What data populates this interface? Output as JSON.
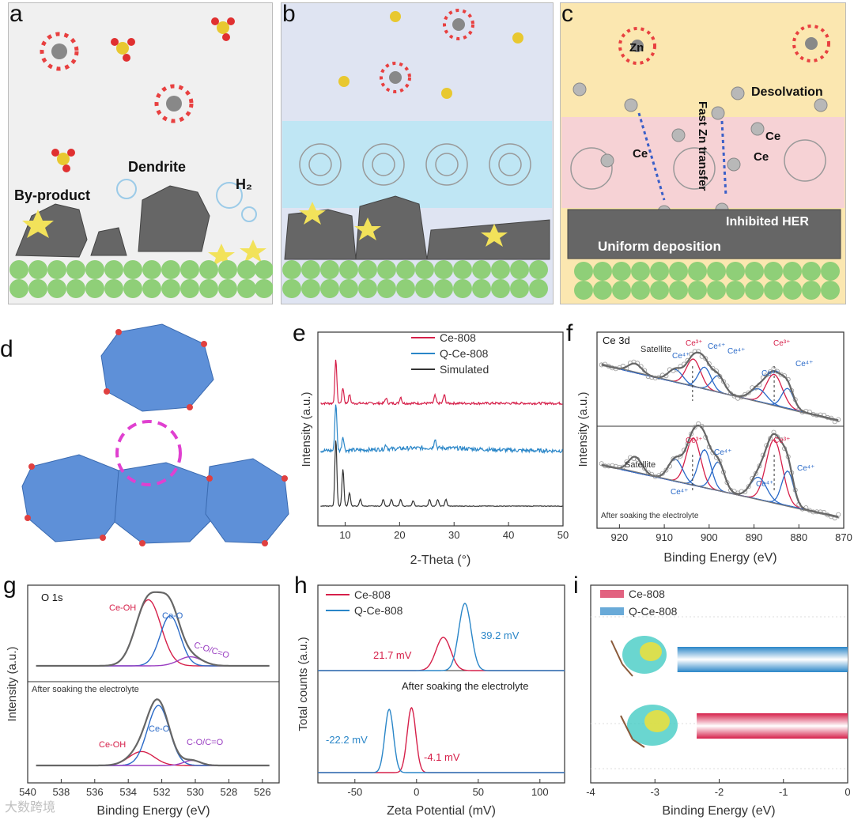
{
  "panels": {
    "a": {
      "label": "a",
      "texts": {
        "byproduct": "By-product",
        "dendrite": "Dendrite",
        "h2": "H₂"
      }
    },
    "b": {
      "label": "b"
    },
    "c": {
      "label": "c",
      "texts": {
        "zn": "Zn",
        "desolvation": "Desolvation",
        "fast": "Fast Zn transfer",
        "ce1": "Ce",
        "ce2": "Ce",
        "ce3": "Ce",
        "inhibited": "Inhibited HER",
        "uniform": "Uniform deposition"
      }
    },
    "d": {
      "label": "d"
    },
    "e": {
      "label": "e"
    },
    "f": {
      "label": "f",
      "texts": {
        "title": "Ce 3d",
        "satellite1": "Satellite",
        "satellite2": "Satellite",
        "after": "After soaking the electrolyte",
        "ce3": "Ce³⁺",
        "ce4": "Ce⁴⁺"
      }
    },
    "g": {
      "label": "g",
      "texts": {
        "title": "O 1s",
        "ceoh": "Ce-OH",
        "ceo": "Ce-O",
        "coc": "C-O/C=O",
        "after": "After soaking the electrolyte"
      }
    },
    "h": {
      "label": "h",
      "texts": {
        "after": "After soaking the electrolyte",
        "v1": "21.7 mV",
        "v2": "39.2 mV",
        "v3": "-22.2 mV",
        "v4": "-4.1 mV"
      }
    },
    "i": {
      "label": "i"
    }
  },
  "colors": {
    "red": "#d6204a",
    "blue": "#2a86c8",
    "black": "#333333",
    "gray": "#7a7a7a",
    "purple": "#9a3fc2"
  },
  "chart_data": [
    {
      "id": "e",
      "type": "line",
      "xlabel": "2-Theta (°)",
      "ylabel": "Intensity (a.u.)",
      "xlim": [
        5,
        50
      ],
      "xticks": [
        "10",
        "20",
        "30",
        "40",
        "50"
      ],
      "series": [
        {
          "name": "Ce-808",
          "peaks": [
            [
              8.3,
              1.0
            ],
            [
              9.6,
              0.35
            ],
            [
              10.8,
              0.2
            ],
            [
              17.5,
              0.12
            ],
            [
              20.2,
              0.15
            ],
            [
              26.5,
              0.18
            ],
            [
              28.2,
              0.2
            ]
          ]
        },
        {
          "name": "Q-Ce-808",
          "peaks": [
            [
              8.3,
              1.0
            ],
            [
              9.6,
              0.3
            ],
            [
              17.5,
              0.1
            ],
            [
              26.5,
              0.2
            ]
          ]
        },
        {
          "name": "Simulated",
          "peaks": [
            [
              8.3,
              1.0
            ],
            [
              9.6,
              0.55
            ],
            [
              10.8,
              0.2
            ],
            [
              12.8,
              0.1
            ],
            [
              17.0,
              0.1
            ],
            [
              18.5,
              0.1
            ],
            [
              20.2,
              0.1
            ],
            [
              22.5,
              0.08
            ],
            [
              25.5,
              0.1
            ],
            [
              27.0,
              0.1
            ],
            [
              28.5,
              0.1
            ]
          ]
        }
      ]
    },
    {
      "id": "f",
      "type": "line",
      "xlabel": "Binding Energy (eV)",
      "ylabel": "Intensity (a.u.)",
      "xlim": [
        925,
        870
      ],
      "xticks": [
        "920",
        "910",
        "900",
        "890",
        "880",
        "870"
      ]
    },
    {
      "id": "g",
      "type": "line",
      "xlabel": "Binding Energy (eV)",
      "ylabel": "Intensity (a.u.)",
      "xlim": [
        540,
        525
      ],
      "xticks": [
        "540",
        "538",
        "536",
        "534",
        "532",
        "530",
        "528",
        "526"
      ]
    },
    {
      "id": "h",
      "type": "line",
      "xlabel": "Zeta Potential (mV)",
      "ylabel": "Total counts (a.u.)",
      "xlim": [
        -80,
        120
      ],
      "xticks": [
        "-50",
        "0",
        "50",
        "100"
      ],
      "series": [
        {
          "name": "Ce-808",
          "peaks_mV": [
            21.7,
            -4.1
          ]
        },
        {
          "name": "Q-Ce-808",
          "peaks_mV": [
            39.2,
            -22.2
          ]
        }
      ]
    },
    {
      "id": "i",
      "type": "bar",
      "xlabel": "Binding Energy (eV)",
      "xlim": [
        -4,
        0
      ],
      "xticks": [
        "-4",
        "-3",
        "-2",
        "-1",
        "0"
      ],
      "series": [
        {
          "name": "Ce-808",
          "value": -2.35
        },
        {
          "name": "Q-Ce-808",
          "value": -2.65
        }
      ]
    }
  ],
  "watermark": "大数跨境"
}
